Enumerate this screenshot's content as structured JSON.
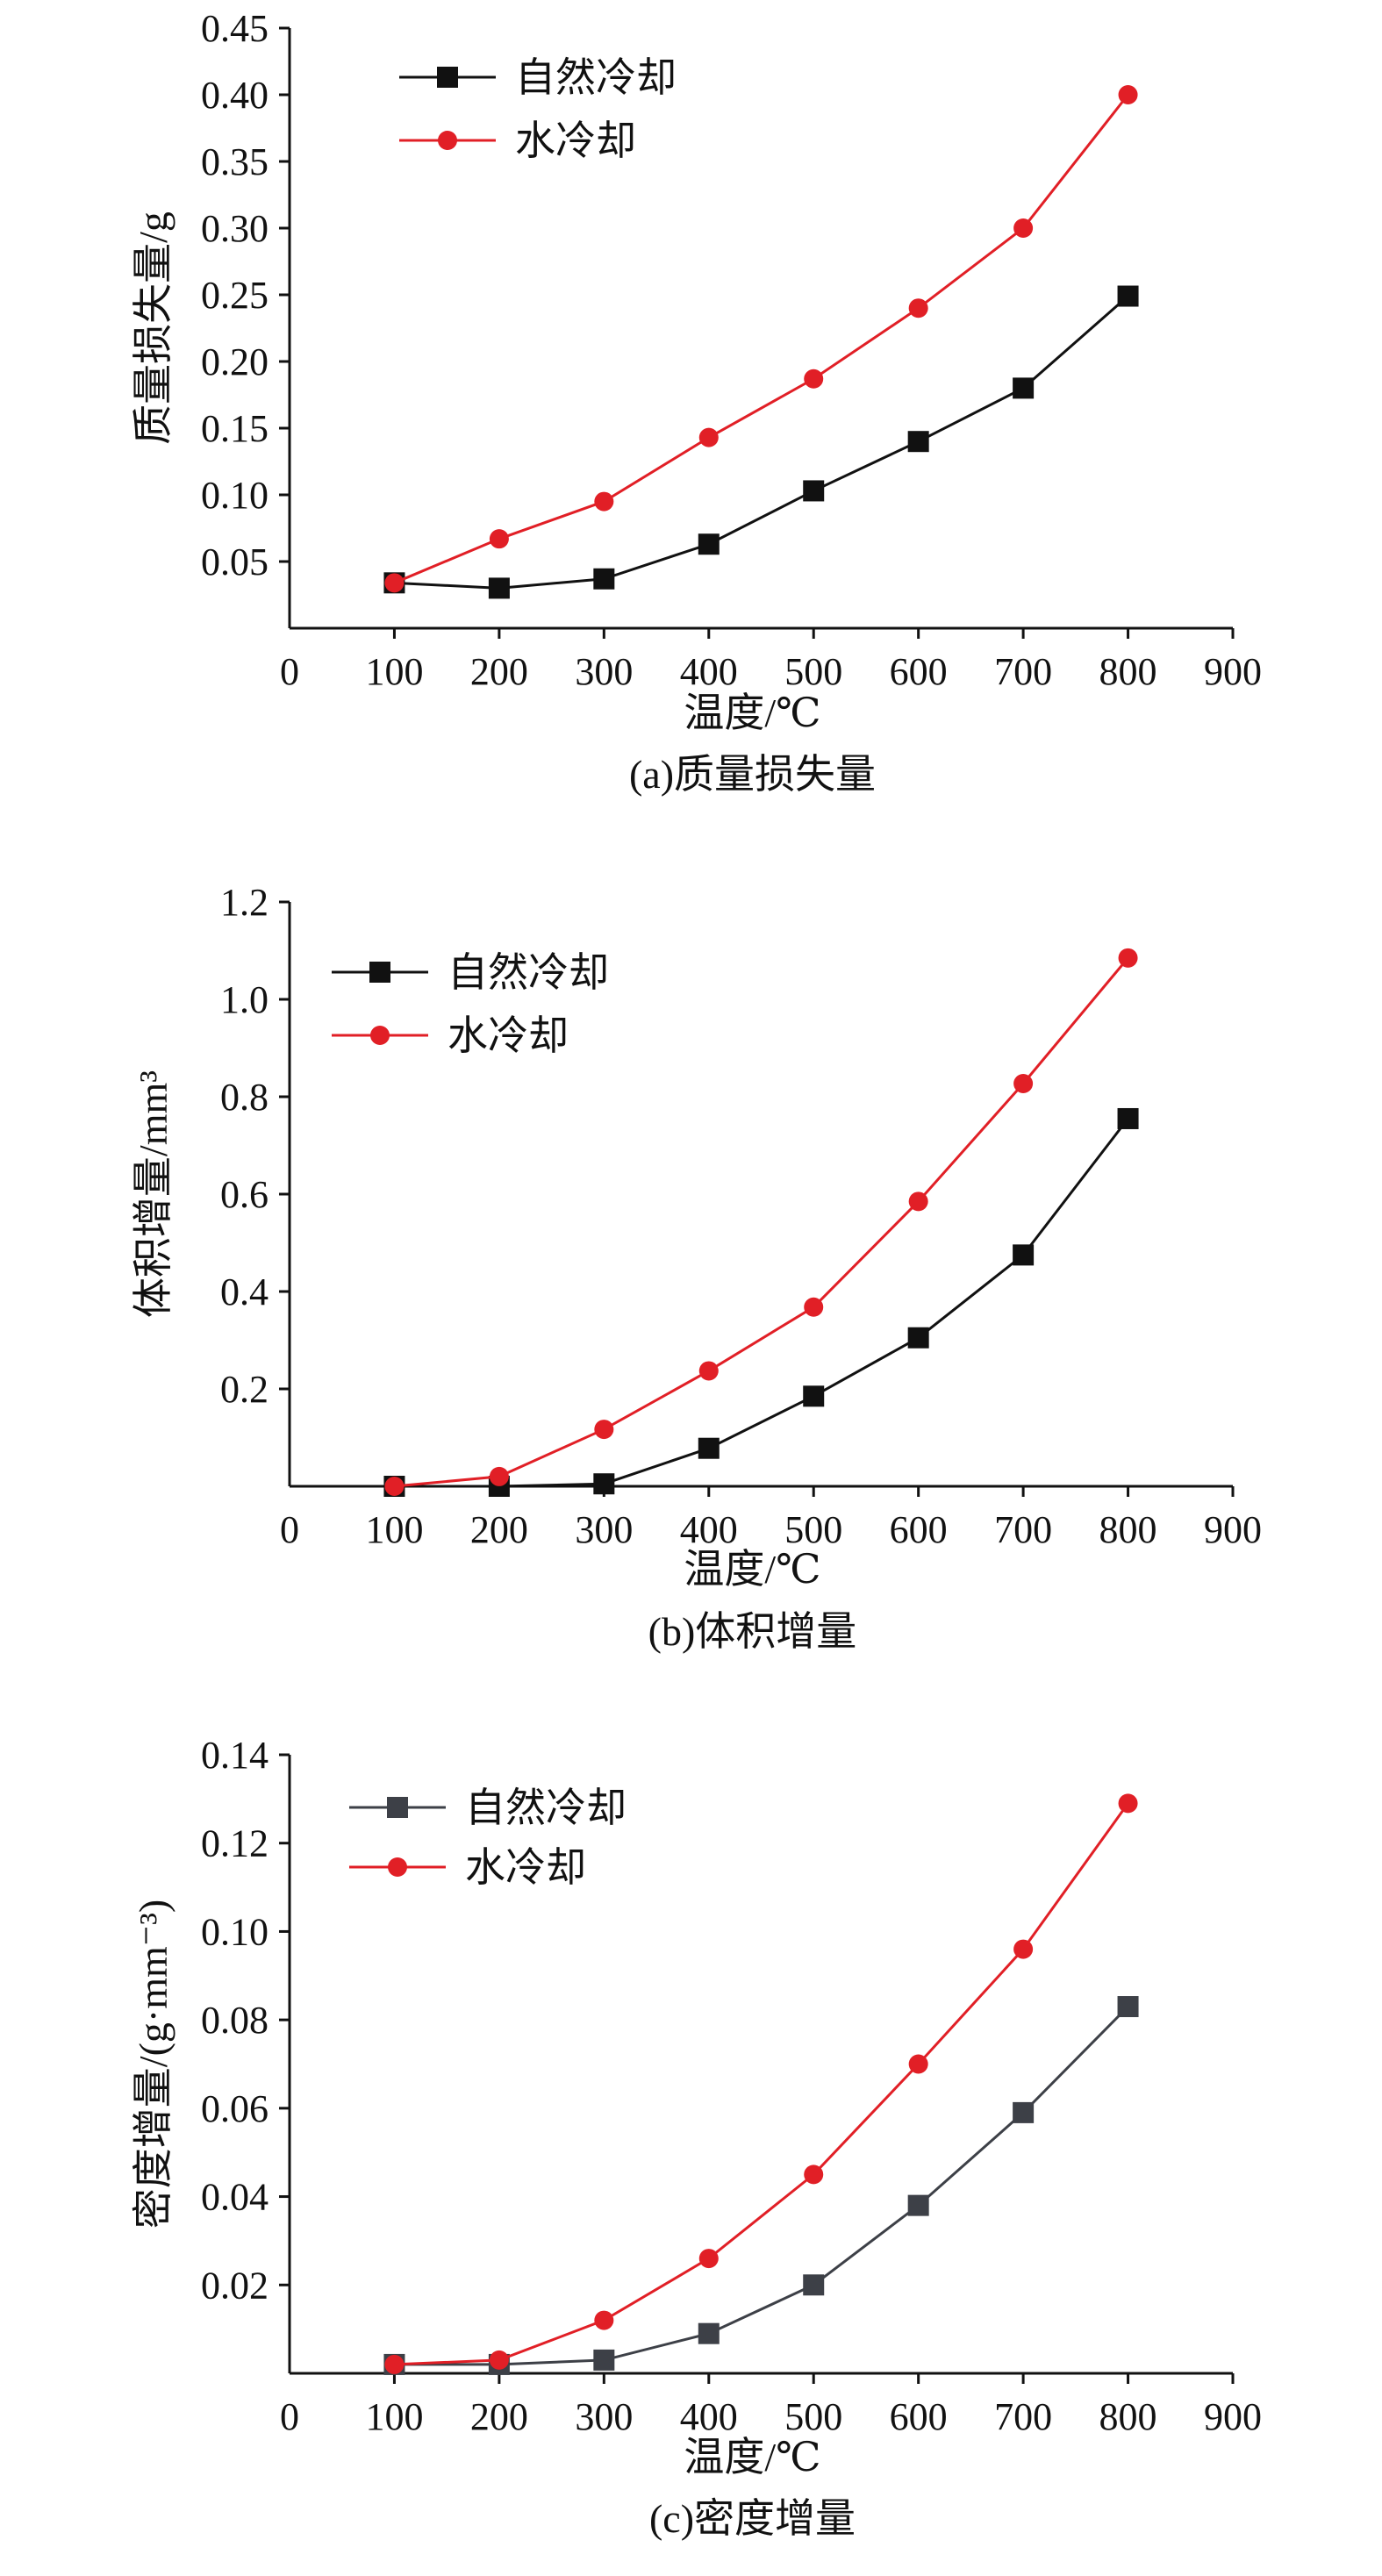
{
  "charts": [
    {
      "caption": "(a)质量损失量",
      "ylabel": "质量损失量/g",
      "xlabel": "温度/℃"
    },
    {
      "caption": "(b)体积增量",
      "ylabel": "体积增量/mm³",
      "xlabel": "温度/℃"
    },
    {
      "caption": "(c)密度增量",
      "ylabel": "密度增量/(g·mm⁻³)",
      "xlabel": "温度/℃"
    }
  ],
  "chart_data": [
    {
      "type": "line",
      "title": "",
      "caption": "(a)质量损失量",
      "xlabel": "温度/℃",
      "ylabel": "质量损失量/g",
      "xlim": [
        0,
        900
      ],
      "ylim": [
        0,
        0.45
      ],
      "xticks": [
        "0",
        "100",
        "200",
        "300",
        "400",
        "500",
        "600",
        "700",
        "800",
        "900"
      ],
      "yticks": [
        "0.05",
        "0.10",
        "0.15",
        "0.20",
        "0.25",
        "0.30",
        "0.35",
        "0.40",
        "0.45"
      ],
      "legend_position": "top-left",
      "x": [
        100,
        200,
        300,
        400,
        500,
        600,
        700,
        800
      ],
      "series": [
        {
          "name": "自然冷却",
          "color": "#111111",
          "marker": "square",
          "values": [
            0.034,
            0.03,
            0.037,
            0.063,
            0.103,
            0.14,
            0.18,
            0.249
          ]
        },
        {
          "name": "水冷却",
          "color": "#e11f26",
          "marker": "circle",
          "values": [
            0.034,
            0.067,
            0.095,
            0.143,
            0.187,
            0.24,
            0.3,
            0.4
          ]
        }
      ]
    },
    {
      "type": "line",
      "title": "",
      "caption": "(b)体积增量",
      "xlabel": "温度/℃",
      "ylabel": "体积增量/mm³",
      "xlim": [
        0,
        900
      ],
      "ylim": [
        0,
        1.2
      ],
      "xticks": [
        "0",
        "100",
        "200",
        "300",
        "400",
        "500",
        "600",
        "700",
        "800",
        "900"
      ],
      "yticks": [
        "0.2",
        "0.4",
        "0.6",
        "0.8",
        "1.0",
        "1.2"
      ],
      "legend_position": "top-left",
      "x": [
        100,
        200,
        300,
        400,
        500,
        600,
        700,
        800
      ],
      "series": [
        {
          "name": "自然冷却",
          "color": "#111111",
          "marker": "square",
          "values": [
            0.0,
            0.0,
            0.005,
            0.078,
            0.185,
            0.305,
            0.475,
            0.755
          ]
        },
        {
          "name": "水冷却",
          "color": "#e11f26",
          "marker": "circle",
          "values": [
            0.0,
            0.02,
            0.117,
            0.237,
            0.368,
            0.585,
            0.827,
            1.085
          ]
        }
      ]
    },
    {
      "type": "line",
      "title": "",
      "caption": "(c)密度增量",
      "xlabel": "温度/℃",
      "ylabel": "密度增量/(g·mm⁻³)",
      "xlim": [
        0,
        900
      ],
      "ylim": [
        0,
        0.14
      ],
      "xticks": [
        "0",
        "100",
        "200",
        "300",
        "400",
        "500",
        "600",
        "700",
        "800",
        "900"
      ],
      "yticks": [
        "0.02",
        "0.04",
        "0.06",
        "0.08",
        "0.10",
        "0.12",
        "0.14"
      ],
      "legend_position": "top-left",
      "x": [
        100,
        200,
        300,
        400,
        500,
        600,
        700,
        800
      ],
      "series": [
        {
          "name": "自然冷却",
          "color": "#3d4047",
          "marker": "square",
          "values": [
            0.002,
            0.002,
            0.003,
            0.009,
            0.02,
            0.038,
            0.059,
            0.083
          ]
        },
        {
          "name": "水冷却",
          "color": "#e11f26",
          "marker": "circle",
          "values": [
            0.002,
            0.003,
            0.012,
            0.026,
            0.045,
            0.07,
            0.096,
            0.129
          ]
        }
      ]
    }
  ]
}
